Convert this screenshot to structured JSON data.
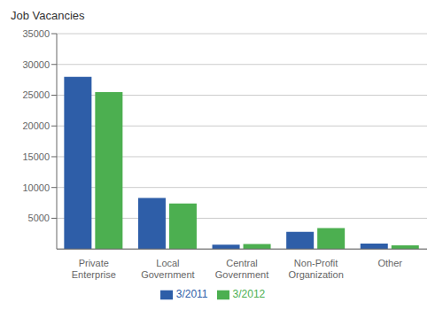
{
  "chart_data": {
    "type": "bar",
    "ylabel": "Job Vacancies",
    "categories": [
      "Private\nEnterprise",
      "Local\nGovernment",
      "Central\nGovernment",
      "Non-Profit\nOrganization",
      "Other"
    ],
    "series": [
      {
        "name": "3/2011",
        "color": "#2E5EA8",
        "values": [
          28000,
          8300,
          700,
          2800,
          900
        ]
      },
      {
        "name": "3/2012",
        "color": "#4CAF50",
        "values": [
          25500,
          7400,
          800,
          3400,
          600
        ]
      }
    ],
    "ylim": [
      0,
      35000
    ],
    "yticks": [
      5000,
      10000,
      15000,
      20000,
      25000,
      30000,
      35000
    ],
    "grid": true,
    "legend": "bottom"
  }
}
